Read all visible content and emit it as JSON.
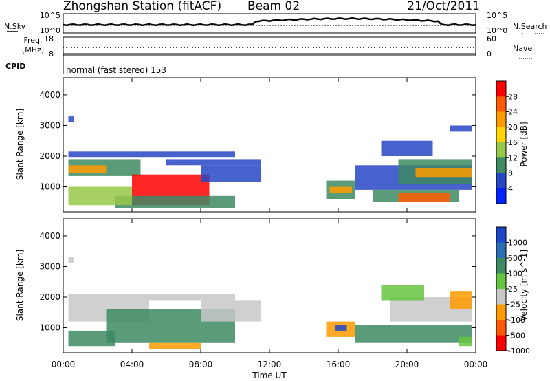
{
  "header": {
    "station": "Zhongshan Station (fitACF)",
    "beam": "Beam 02",
    "date": "21/Oct/2011"
  },
  "top_panels": {
    "nsky_label": "N.Sky",
    "nsearch_label": "N.Search",
    "freq_label": "Freq.",
    "freq_unit": "[MHz]",
    "nave_label": "Nave",
    "cpid_label": "CPID",
    "cpid_text": "normal (fast stereo) 153",
    "noise_ticks": [
      "10^5",
      "10^0"
    ],
    "freq_ticks": [
      "18",
      "8"
    ],
    "nave_ticks": [
      "60",
      "0"
    ]
  },
  "power_colorbar": {
    "label": "Power [dB]",
    "ticks": [
      "28",
      "24",
      "20",
      "16",
      "12",
      "8",
      "4"
    ],
    "colors": [
      "#ff0000",
      "#ff5a00",
      "#ff9b00",
      "#ffd400",
      "#98c848",
      "#3d8a63",
      "#2747c4",
      "#0022ff"
    ]
  },
  "velocity_colorbar": {
    "label": "Velocity [m s^-1]",
    "ticks": [
      "1000",
      "500",
      "100",
      "25",
      "-25",
      "-100",
      "-500",
      "-1000"
    ],
    "colors": [
      "#1e46c8",
      "#2a6fb4",
      "#3d8a63",
      "#66c440",
      "#c8c8c8",
      "#ff9b00",
      "#ff5a00",
      "#ff0000"
    ]
  },
  "chart_data": [
    {
      "type": "heatmap",
      "name": "power",
      "ylabel": "Slant Range [km]",
      "xlabel": "Time UT",
      "x_ticks": [
        "00:00",
        "04:00",
        "08:00",
        "12:00",
        "16:00",
        "20:00",
        "00:00"
      ],
      "y_ticks": [
        "4000",
        "3000",
        "2000",
        "1000"
      ],
      "x_range_hours": [
        0,
        24
      ],
      "y_range_km": [
        180,
        4560
      ],
      "patches": [
        {
          "t0": 0.3,
          "t1": 4.5,
          "r0": 1350,
          "r1": 1900,
          "c": "#3d8a63"
        },
        {
          "t0": 0.3,
          "t1": 2.5,
          "r0": 1450,
          "r1": 1700,
          "c": "#ff9b00"
        },
        {
          "t0": 0.3,
          "t1": 10.0,
          "r0": 1950,
          "r1": 2150,
          "c": "#2747c4"
        },
        {
          "t0": 4.0,
          "t1": 8.5,
          "r0": 400,
          "r1": 1400,
          "c": "#ff0000"
        },
        {
          "t0": 3.0,
          "t1": 10.0,
          "r0": 300,
          "r1": 700,
          "c": "#3d8a63"
        },
        {
          "t0": 0.3,
          "t1": 4.0,
          "r0": 400,
          "r1": 1000,
          "c": "#98c848"
        },
        {
          "t0": 8.0,
          "t1": 11.5,
          "r0": 1150,
          "r1": 1700,
          "c": "#2747c4"
        },
        {
          "t0": 6.0,
          "t1": 11.5,
          "r0": 1700,
          "r1": 1900,
          "c": "#2747c4"
        },
        {
          "t0": 15.3,
          "t1": 17.0,
          "r0": 600,
          "r1": 1200,
          "c": "#3d8a63"
        },
        {
          "t0": 15.5,
          "t1": 16.8,
          "r0": 800,
          "r1": 1000,
          "c": "#ff9b00"
        },
        {
          "t0": 17.0,
          "t1": 23.8,
          "r0": 900,
          "r1": 1700,
          "c": "#2747c4"
        },
        {
          "t0": 19.5,
          "t1": 23.8,
          "r0": 1100,
          "r1": 1900,
          "c": "#3d8a63"
        },
        {
          "t0": 20.5,
          "t1": 23.8,
          "r0": 1300,
          "r1": 1600,
          "c": "#ff9b00"
        },
        {
          "t0": 18.0,
          "t1": 23.0,
          "r0": 500,
          "r1": 900,
          "c": "#3d8a63"
        },
        {
          "t0": 19.5,
          "t1": 22.5,
          "r0": 500,
          "r1": 800,
          "c": "#ff5a00"
        },
        {
          "t0": 18.5,
          "t1": 21.5,
          "r0": 2000,
          "r1": 2500,
          "c": "#2747c4"
        },
        {
          "t0": 22.5,
          "t1": 23.8,
          "r0": 2800,
          "r1": 3000,
          "c": "#2747c4"
        },
        {
          "t0": 0.3,
          "t1": 0.6,
          "r0": 3100,
          "r1": 3300,
          "c": "#2747c4"
        }
      ]
    },
    {
      "type": "heatmap",
      "name": "velocity",
      "ylabel": "Slant Range [km]",
      "xlabel": "Time UT",
      "x_ticks": [
        "00:00",
        "04:00",
        "08:00",
        "12:00",
        "16:00",
        "20:00",
        "00:00"
      ],
      "y_ticks": [
        "4000",
        "3000",
        "2000",
        "1000"
      ],
      "x_range_hours": [
        0,
        24
      ],
      "y_range_km": [
        180,
        4560
      ],
      "patches": [
        {
          "t0": 0.3,
          "t1": 5.0,
          "r0": 1200,
          "r1": 1900,
          "c": "#c8c8c8"
        },
        {
          "t0": 0.3,
          "t1": 10.0,
          "r0": 1900,
          "r1": 2100,
          "c": "#c8c8c8"
        },
        {
          "t0": 2.5,
          "t1": 10.0,
          "r0": 500,
          "r1": 1600,
          "c": "#3d8a63"
        },
        {
          "t0": 0.3,
          "t1": 3.0,
          "r0": 400,
          "r1": 900,
          "c": "#3d8a63"
        },
        {
          "t0": 5.0,
          "t1": 8.0,
          "r0": 300,
          "r1": 500,
          "c": "#ff9b00"
        },
        {
          "t0": 8.0,
          "t1": 11.5,
          "r0": 1200,
          "r1": 1900,
          "c": "#c8c8c8"
        },
        {
          "t0": 15.3,
          "t1": 17.0,
          "r0": 700,
          "r1": 1200,
          "c": "#ff9b00"
        },
        {
          "t0": 15.8,
          "t1": 16.5,
          "r0": 900,
          "r1": 1100,
          "c": "#1e46c8"
        },
        {
          "t0": 17.0,
          "t1": 23.8,
          "r0": 500,
          "r1": 1100,
          "c": "#3d8a63"
        },
        {
          "t0": 19.0,
          "t1": 23.8,
          "r0": 1200,
          "r1": 2000,
          "c": "#c8c8c8"
        },
        {
          "t0": 18.5,
          "t1": 21.0,
          "r0": 1900,
          "r1": 2400,
          "c": "#66c440"
        },
        {
          "t0": 22.5,
          "t1": 23.8,
          "r0": 1600,
          "r1": 2200,
          "c": "#ff9b00"
        },
        {
          "t0": 23.0,
          "t1": 23.8,
          "r0": 400,
          "r1": 700,
          "c": "#66c440"
        },
        {
          "t0": 0.3,
          "t1": 0.6,
          "r0": 3100,
          "r1": 3300,
          "c": "#c8c8c8"
        }
      ]
    }
  ]
}
